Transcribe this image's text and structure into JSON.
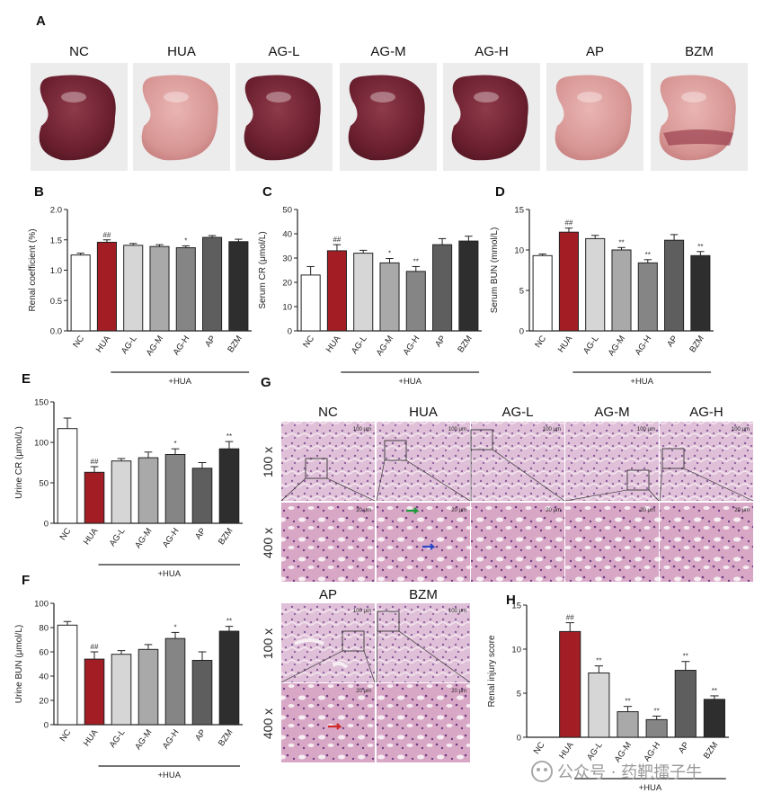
{
  "panel_labels": {
    "A": "A",
    "B": "B",
    "C": "C",
    "D": "D",
    "E": "E",
    "F": "F",
    "G": "G",
    "H": "H"
  },
  "kidney_groups": [
    "NC",
    "HUA",
    "AG-L",
    "AG-M",
    "AG-H",
    "AP",
    "BZM"
  ],
  "histology": {
    "row1_groups": [
      "NC",
      "HUA",
      "AG-L",
      "AG-M",
      "AG-H"
    ],
    "row2_groups": [
      "AP",
      "BZM"
    ],
    "mag_low": "100 x",
    "mag_high": "400 x",
    "scale_low": "100 μm",
    "scale_high": "20 μm"
  },
  "watermark": "公众号 · 药靶擂子牛",
  "colors": {
    "NC": "#ffffff",
    "HUA": "#a31e24",
    "AG-L": "#d6d6d6",
    "AG-M": "#a9a9a9",
    "AG-H": "#858585",
    "AP": "#5e5e5e",
    "BZM": "#2e2e2e"
  },
  "chart_data": [
    {
      "id": "B",
      "type": "bar",
      "ylabel": "Renal coefficient (%)",
      "categories": [
        "NC",
        "HUA",
        "AG-L",
        "AG-M",
        "AG-H",
        "AP",
        "BZM"
      ],
      "values": [
        1.25,
        1.46,
        1.41,
        1.39,
        1.37,
        1.54,
        1.47
      ],
      "errors": [
        0.03,
        0.04,
        0.03,
        0.03,
        0.03,
        0.03,
        0.04
      ],
      "sig": [
        "",
        "##",
        "",
        "",
        "*",
        "",
        ""
      ],
      "ylim": [
        0,
        2.0
      ],
      "yticks": [
        "0.0",
        "0.5",
        "1.0",
        "1.5",
        "2.0"
      ],
      "group_label": "+HUA"
    },
    {
      "id": "C",
      "type": "bar",
      "ylabel": "Serum CR (μmol/L)",
      "categories": [
        "NC",
        "HUA",
        "AG-L",
        "AG-M",
        "AG-H",
        "AP",
        "BZM"
      ],
      "values": [
        23,
        33,
        32,
        28,
        24.5,
        35.5,
        37
      ],
      "errors": [
        3.5,
        2.5,
        1.2,
        1.8,
        2,
        2.5,
        2
      ],
      "sig": [
        "",
        "##",
        "",
        "*",
        "**",
        "",
        ""
      ],
      "ylim": [
        0,
        50
      ],
      "yticks": [
        "0",
        "10",
        "20",
        "30",
        "40",
        "50"
      ],
      "group_label": "+HUA"
    },
    {
      "id": "D",
      "type": "bar",
      "ylabel": "Serum BUN (mmol/L)",
      "categories": [
        "NC",
        "HUA",
        "AG-L",
        "AG-M",
        "AG-H",
        "AP",
        "BZM"
      ],
      "values": [
        9.3,
        12.2,
        11.4,
        10,
        8.4,
        11.2,
        9.3
      ],
      "errors": [
        0.2,
        0.5,
        0.4,
        0.3,
        0.4,
        0.7,
        0.5
      ],
      "sig": [
        "",
        "##",
        "",
        "**",
        "**",
        "",
        "**"
      ],
      "ylim": [
        0,
        15
      ],
      "yticks": [
        "0",
        "5",
        "10",
        "15"
      ],
      "group_label": "+HUA"
    },
    {
      "id": "E",
      "type": "bar",
      "ylabel": "Urine CR (μmol/L)",
      "categories": [
        "NC",
        "HUA",
        "AG-L",
        "AG-M",
        "AG-H",
        "AP",
        "BZM"
      ],
      "values": [
        117,
        63,
        77,
        81,
        85,
        68,
        92
      ],
      "errors": [
        13,
        7,
        3,
        7,
        7,
        7,
        9
      ],
      "sig": [
        "",
        "##",
        "",
        "",
        "*",
        "",
        "**"
      ],
      "ylim": [
        0,
        150
      ],
      "yticks": [
        "0",
        "50",
        "100",
        "150"
      ],
      "group_label": "+HUA"
    },
    {
      "id": "F",
      "type": "bar",
      "ylabel": "Urine BUN (μmol/L)",
      "categories": [
        "NC",
        "HUA",
        "AG-L",
        "AG-M",
        "AG-H",
        "AP",
        "BZM"
      ],
      "values": [
        82,
        54,
        58,
        62,
        71,
        53,
        77
      ],
      "errors": [
        3,
        6,
        3,
        4,
        5,
        7,
        4
      ],
      "sig": [
        "",
        "##",
        "",
        "",
        "*",
        "",
        "**"
      ],
      "ylim": [
        0,
        100
      ],
      "yticks": [
        "0",
        "20",
        "40",
        "60",
        "80",
        "100"
      ],
      "group_label": "+HUA"
    },
    {
      "id": "H",
      "type": "bar",
      "ylabel": "Renal injury score",
      "categories": [
        "NC",
        "HUA",
        "AG-L",
        "AG-M",
        "AG-H",
        "AP",
        "BZM"
      ],
      "values": [
        0,
        12,
        7.3,
        2.9,
        2,
        7.6,
        4.3
      ],
      "errors": [
        0,
        1,
        0.8,
        0.6,
        0.4,
        1,
        0.4
      ],
      "sig": [
        "",
        "##",
        "**",
        "**",
        "**",
        "**",
        "**"
      ],
      "ylim": [
        0,
        15
      ],
      "yticks": [
        "0",
        "5",
        "10",
        "15"
      ],
      "group_label": "+HUA"
    }
  ]
}
